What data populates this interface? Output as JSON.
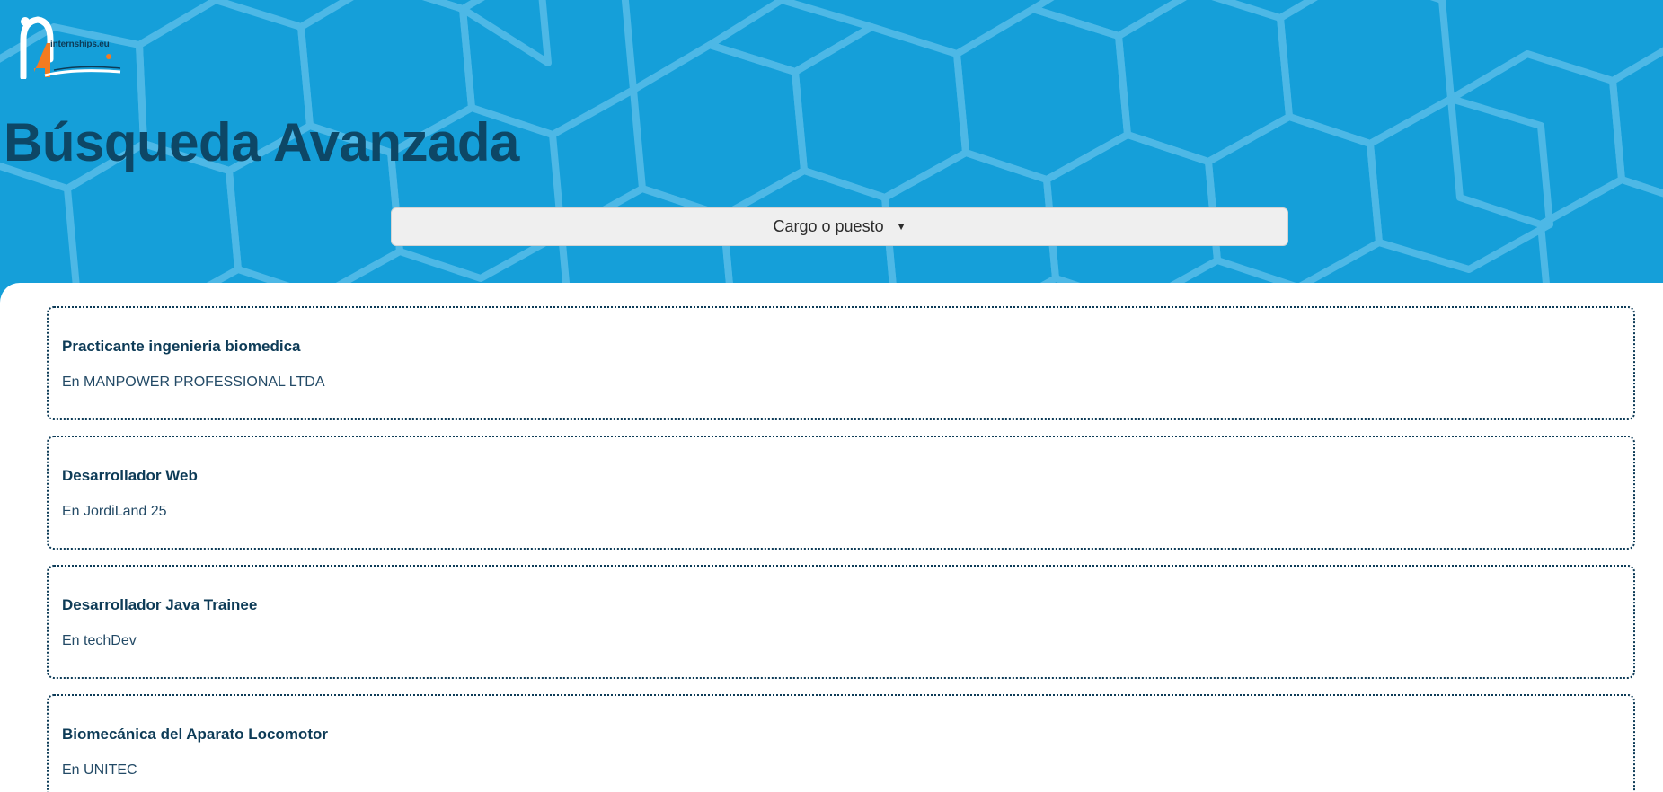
{
  "header": {
    "logo_text": "internships.eu",
    "title": "Búsqueda Avanzada"
  },
  "filter": {
    "label": "Cargo o puesto",
    "caret": "▼"
  },
  "results": [
    {
      "title": "Practicante ingenieria biomedica",
      "company": "En MANPOWER PROFESSIONAL LTDA"
    },
    {
      "title": "Desarrollador Web",
      "company": "En JordiLand 25"
    },
    {
      "title": "Desarrollador Java Trainee",
      "company": "En techDev"
    },
    {
      "title": "Biomecánica del Aparato Locomotor",
      "company": "En UNITEC"
    }
  ],
  "colors": {
    "header_bg": "#159fd9",
    "hex_lines": "#4db8e6",
    "title": "#0d4766",
    "card_border": "#0d3b57",
    "logo_orange": "#f47b20"
  }
}
